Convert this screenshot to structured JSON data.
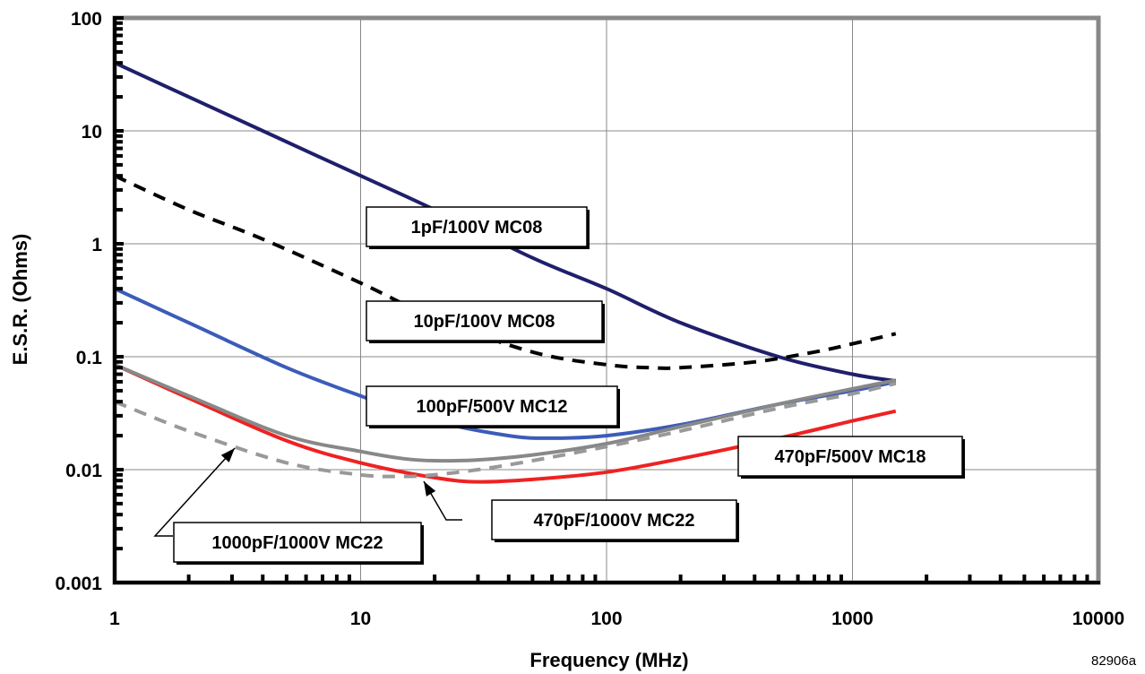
{
  "chart_data": {
    "type": "line",
    "xlabel": "Frequency (MHz)",
    "ylabel": "E.S.R. (Ohms)",
    "x_scale": "log",
    "y_scale": "log",
    "xlim": [
      1,
      10000
    ],
    "ylim": [
      0.001,
      100
    ],
    "x_ticks": [
      "1",
      "10",
      "100",
      "1000",
      "10000"
    ],
    "y_ticks": [
      "0.001",
      "0.01",
      "0.1",
      "1",
      "10",
      "100"
    ],
    "grid": true,
    "figure_code": "82906a",
    "series": [
      {
        "name": "1pF/100V MC08",
        "color": "#1f1f6b",
        "style": "solid",
        "points": [
          [
            1,
            40
          ],
          [
            2,
            20
          ],
          [
            4,
            10
          ],
          [
            10,
            4
          ],
          [
            20,
            2
          ],
          [
            50,
            0.75
          ],
          [
            100,
            0.4
          ],
          [
            200,
            0.2
          ],
          [
            500,
            0.1
          ],
          [
            1000,
            0.07
          ],
          [
            1500,
            0.061
          ]
        ]
      },
      {
        "name": "10pF/100V MC08",
        "color": "#000000",
        "style": "dashed",
        "points": [
          [
            1,
            4
          ],
          [
            2,
            2
          ],
          [
            4,
            1.1
          ],
          [
            10,
            0.45
          ],
          [
            20,
            0.22
          ],
          [
            50,
            0.11
          ],
          [
            100,
            0.085
          ],
          [
            150,
            0.08
          ],
          [
            200,
            0.08
          ],
          [
            400,
            0.09
          ],
          [
            700,
            0.11
          ],
          [
            1000,
            0.13
          ],
          [
            1500,
            0.16
          ]
        ]
      },
      {
        "name": "100pF/500V MC12",
        "color": "#3b5cb8",
        "style": "solid",
        "points": [
          [
            1,
            0.4
          ],
          [
            2,
            0.2
          ],
          [
            5,
            0.08
          ],
          [
            10,
            0.045
          ],
          [
            20,
            0.027
          ],
          [
            40,
            0.02
          ],
          [
            60,
            0.019
          ],
          [
            100,
            0.02
          ],
          [
            200,
            0.025
          ],
          [
            500,
            0.038
          ],
          [
            1000,
            0.05
          ],
          [
            1500,
            0.06
          ]
        ]
      },
      {
        "name": "470pF/500V MC18",
        "color": "#ee2222",
        "style": "solid",
        "points": [
          [
            1,
            0.085
          ],
          [
            2,
            0.043
          ],
          [
            5,
            0.018
          ],
          [
            10,
            0.0115
          ],
          [
            20,
            0.0085
          ],
          [
            30,
            0.0078
          ],
          [
            50,
            0.0082
          ],
          [
            100,
            0.0095
          ],
          [
            200,
            0.0125
          ],
          [
            500,
            0.019
          ],
          [
            1000,
            0.027
          ],
          [
            1500,
            0.033
          ]
        ]
      },
      {
        "name": "470pF/1000V MC22",
        "color": "#888888",
        "style": "solid",
        "points": [
          [
            1,
            0.085
          ],
          [
            2,
            0.045
          ],
          [
            5,
            0.02
          ],
          [
            10,
            0.0145
          ],
          [
            15,
            0.0125
          ],
          [
            20,
            0.012
          ],
          [
            30,
            0.0122
          ],
          [
            50,
            0.0135
          ],
          [
            100,
            0.017
          ],
          [
            200,
            0.024
          ],
          [
            500,
            0.038
          ],
          [
            1000,
            0.052
          ],
          [
            1500,
            0.062
          ]
        ]
      },
      {
        "name": "1000pF/1000V MC22",
        "color": "#999999",
        "style": "dashed",
        "points": [
          [
            1,
            0.04
          ],
          [
            2,
            0.022
          ],
          [
            5,
            0.0115
          ],
          [
            10,
            0.009
          ],
          [
            15,
            0.0087
          ],
          [
            20,
            0.009
          ],
          [
            30,
            0.01
          ],
          [
            50,
            0.012
          ],
          [
            100,
            0.016
          ],
          [
            200,
            0.022
          ],
          [
            500,
            0.035
          ],
          [
            1000,
            0.047
          ],
          [
            1500,
            0.058
          ]
        ]
      }
    ],
    "annotations": [
      {
        "text": "1pF/100V MC08"
      },
      {
        "text": "10pF/100V MC08"
      },
      {
        "text": "100pF/500V MC12"
      },
      {
        "text": "470pF/500V MC18"
      },
      {
        "text": "470pF/1000V MC22"
      },
      {
        "text": "1000pF/1000V MC22"
      }
    ]
  }
}
